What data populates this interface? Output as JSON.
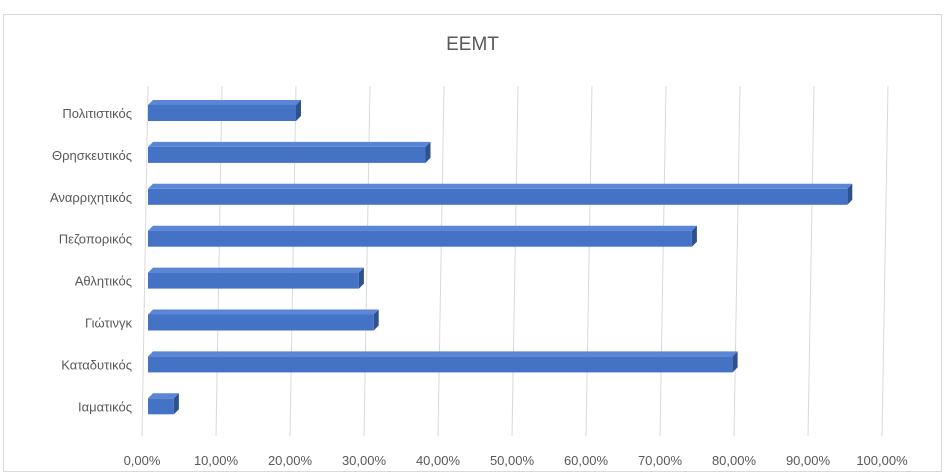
{
  "chart_data": {
    "type": "bar",
    "orientation": "horizontal",
    "title": "ΕΕΜΤ",
    "xlabel": "",
    "ylabel": "",
    "categories": [
      "Πολιτιστικός",
      "Θρησκευτικός",
      "Αναρριχητικός",
      "Πεζοπορικός",
      "Αθλητικός",
      "Γιώτινγκ",
      "Καταδυτικός",
      "Ιαματικός"
    ],
    "values": [
      20.0,
      37.5,
      94.5,
      73.5,
      28.5,
      30.5,
      79.0,
      3.5
    ],
    "xlim": [
      0,
      100
    ],
    "x_ticks": [
      0,
      10,
      20,
      30,
      40,
      50,
      60,
      70,
      80,
      90,
      100
    ],
    "x_tick_labels": [
      "0,00%",
      "10,00%",
      "20,00%",
      "30,00%",
      "40,00%",
      "50,00%",
      "60,00%",
      "70,00%",
      "80,00%",
      "90,00%",
      "100,00%"
    ],
    "grid": "vertical",
    "legend": "none",
    "bar_color": "#4472c4",
    "bar_side_color": "#2f528f",
    "bar_top_color": "#5b86d6",
    "grid_color": "#d9d9d9",
    "text_color": "#595959"
  }
}
